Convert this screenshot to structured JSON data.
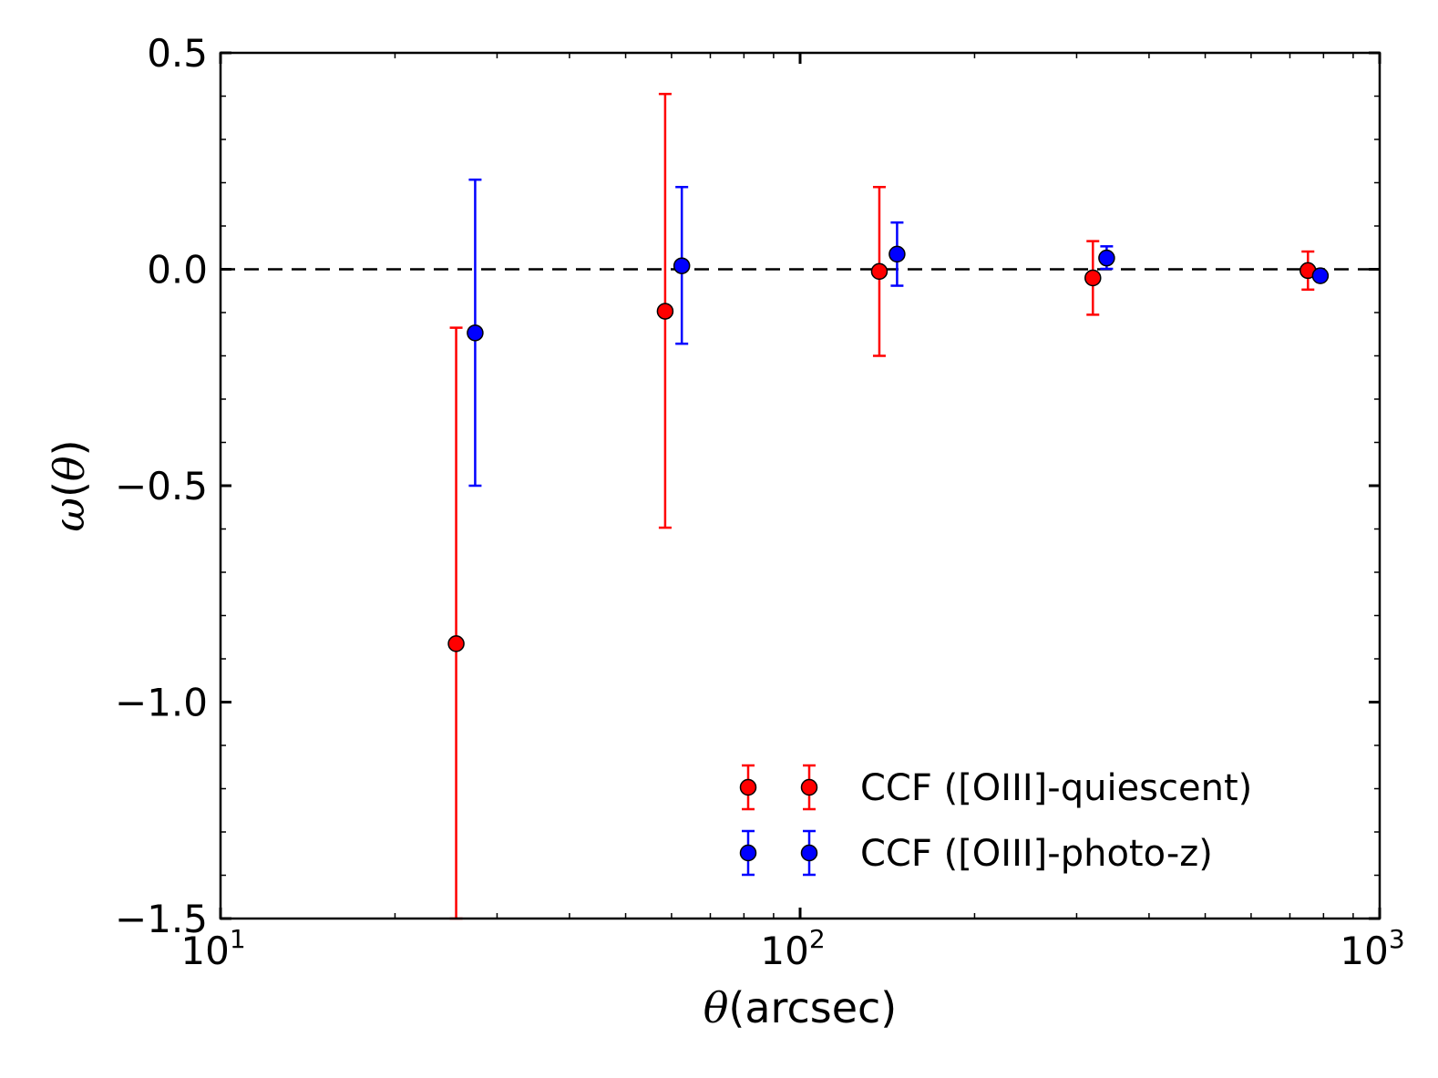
{
  "chart_data": {
    "type": "scatter",
    "title": "",
    "xlabel": "θ(arcsec)",
    "xlabel_symbol": "θ",
    "xlabel_unit": "(arcsec)",
    "ylabel": "ω(θ)",
    "ylabel_symbol": "ω",
    "ylabel_paren_open": "(",
    "ylabel_arg": "θ",
    "ylabel_paren_close": ")",
    "xscale": "log",
    "xlim": [
      10,
      1000
    ],
    "ylim": [
      -1.5,
      0.5
    ],
    "xticks": [
      {
        "base": "10",
        "exp": "1",
        "value": 10
      },
      {
        "base": "10",
        "exp": "2",
        "value": 100
      },
      {
        "base": "10",
        "exp": "3",
        "value": 1000
      }
    ],
    "yticks": [
      {
        "label": "0.5",
        "value": 0.5
      },
      {
        "label": "0.0",
        "value": 0.0
      },
      {
        "label": "−0.5",
        "value": -0.5
      },
      {
        "label": "−1.0",
        "value": -1.0
      },
      {
        "label": "−1.5",
        "value": -1.5
      }
    ],
    "reference_line": {
      "y": 0,
      "style": "dashed",
      "color": "#000000"
    },
    "legend_position": "lower-right",
    "series": [
      {
        "name": "CCF ([OIII]-quiescent)",
        "color": "#ff0000",
        "points": [
          {
            "x": 25.5,
            "y": -0.865,
            "ylo": -1.5,
            "yhi": -0.135
          },
          {
            "x": 58.5,
            "y": -0.097,
            "ylo": -0.597,
            "yhi": 0.405
          },
          {
            "x": 137,
            "y": -0.005,
            "ylo": -0.2,
            "yhi": 0.19
          },
          {
            "x": 320,
            "y": -0.02,
            "ylo": -0.105,
            "yhi": 0.065
          },
          {
            "x": 752,
            "y": -0.003,
            "ylo": -0.047,
            "yhi": 0.041
          }
        ]
      },
      {
        "name": "CCF ([OIII]-photo-z)",
        "color": "#0000ff",
        "points": [
          {
            "x": 27.5,
            "y": -0.147,
            "ylo": -0.5,
            "yhi": 0.207
          },
          {
            "x": 62.5,
            "y": 0.008,
            "ylo": -0.172,
            "yhi": 0.19
          },
          {
            "x": 147,
            "y": 0.035,
            "ylo": -0.038,
            "yhi": 0.108
          },
          {
            "x": 338,
            "y": 0.026,
            "ylo": 0.001,
            "yhi": 0.053
          },
          {
            "x": 790,
            "y": -0.015,
            "ylo": -0.022,
            "yhi": -0.008
          }
        ]
      }
    ]
  }
}
